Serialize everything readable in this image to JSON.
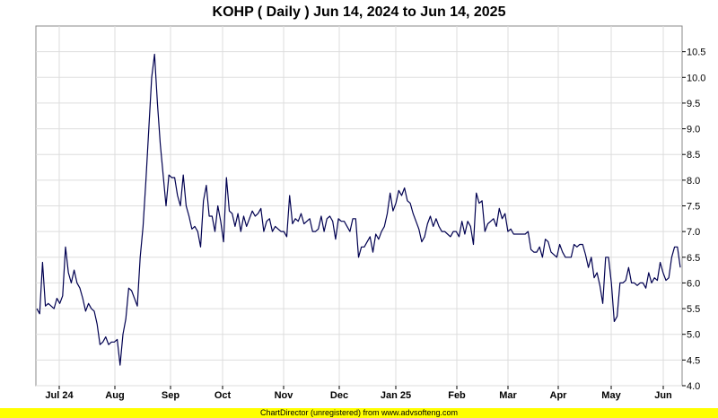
{
  "chart_data": {
    "type": "line",
    "title": "KOHP ( Daily ) Jun 14, 2024 to Jun 14, 2025",
    "xlabel": "",
    "ylabel": "",
    "ylim": [
      4.0,
      11.0
    ],
    "yticks": [
      "4.0",
      "4.5",
      "5.0",
      "5.5",
      "6.0",
      "6.5",
      "7.0",
      "7.5",
      "8.0",
      "8.5",
      "9.0",
      "9.5",
      "10.0",
      "10.5"
    ],
    "xtick_labels": [
      "Jul 24",
      "Aug",
      "Sep",
      "Oct",
      "Nov",
      "Dec",
      "Jan 25",
      "Feb",
      "Mar",
      "Apr",
      "May",
      "Jun"
    ],
    "grid": true,
    "legend": "none",
    "line_color": "#000050",
    "series": [
      {
        "values": [
          5.5,
          5.4,
          6.4,
          5.55,
          5.6,
          5.55,
          5.5,
          5.7,
          5.6,
          5.75,
          6.7,
          6.2,
          6.0,
          6.25,
          6.0,
          5.9,
          5.7,
          5.45,
          5.6,
          5.5,
          5.45,
          5.2,
          4.8,
          4.85,
          4.95,
          4.8,
          4.85,
          4.85,
          4.9,
          4.4,
          5.0,
          5.3,
          5.9,
          5.85,
          5.7,
          5.55,
          6.5,
          7.1,
          8.0,
          9.0,
          10.0,
          10.45,
          9.5,
          8.7,
          8.1,
          7.5,
          8.1,
          8.05,
          8.05,
          7.7,
          7.5,
          8.1,
          7.5,
          7.3,
          7.05,
          7.1,
          7.0,
          6.7,
          7.6,
          7.9,
          7.3,
          7.3,
          7.0,
          7.5,
          7.2,
          6.8,
          8.05,
          7.4,
          7.35,
          7.1,
          7.35,
          7.0,
          7.3,
          7.1,
          7.25,
          7.4,
          7.3,
          7.35,
          7.45,
          7.0,
          7.2,
          7.25,
          7.0,
          7.1,
          7.05,
          7.0,
          7.0,
          6.9,
          7.7,
          7.15,
          7.25,
          7.2,
          7.35,
          7.15,
          7.2,
          7.25,
          7.0,
          7.0,
          7.05,
          7.3,
          7.0,
          7.25,
          7.3,
          7.2,
          6.85,
          7.25,
          7.2,
          7.2,
          7.1,
          7.0,
          7.25,
          7.25,
          6.5,
          6.7,
          6.7,
          6.8,
          6.9,
          6.6,
          6.95,
          6.85,
          7.0,
          7.1,
          7.35,
          7.75,
          7.4,
          7.55,
          7.8,
          7.7,
          7.85,
          7.6,
          7.55,
          7.35,
          7.2,
          7.05,
          6.8,
          6.9,
          7.15,
          7.3,
          7.1,
          7.25,
          7.1,
          7.0,
          7.0,
          6.95,
          6.9,
          7.0,
          7.0,
          6.9,
          7.2,
          6.95,
          7.2,
          7.1,
          6.75,
          7.75,
          7.55,
          7.6,
          7.0,
          7.15,
          7.2,
          7.25,
          7.1,
          7.45,
          7.25,
          7.35,
          7.0,
          7.05,
          6.95,
          6.95,
          6.95,
          6.95,
          6.95,
          7.0,
          6.65,
          6.6,
          6.6,
          6.7,
          6.5,
          6.85,
          6.8,
          6.6,
          6.55,
          6.5,
          6.75,
          6.6,
          6.5,
          6.5,
          6.5,
          6.75,
          6.7,
          6.75,
          6.75,
          6.55,
          6.3,
          6.5,
          6.1,
          6.2,
          5.95,
          5.6,
          6.5,
          6.5,
          6.0,
          5.25,
          5.35,
          6.0,
          6.0,
          6.05,
          6.3,
          6.0,
          6.0,
          5.95,
          6.0,
          6.0,
          5.9,
          6.2,
          6.0,
          6.1,
          6.05,
          6.4,
          6.2,
          6.05,
          6.1,
          6.5,
          6.7,
          6.7,
          6.3
        ]
      }
    ]
  },
  "footer": {
    "text": "ChartDirector (unregistered) from www.advsofteng.com"
  }
}
